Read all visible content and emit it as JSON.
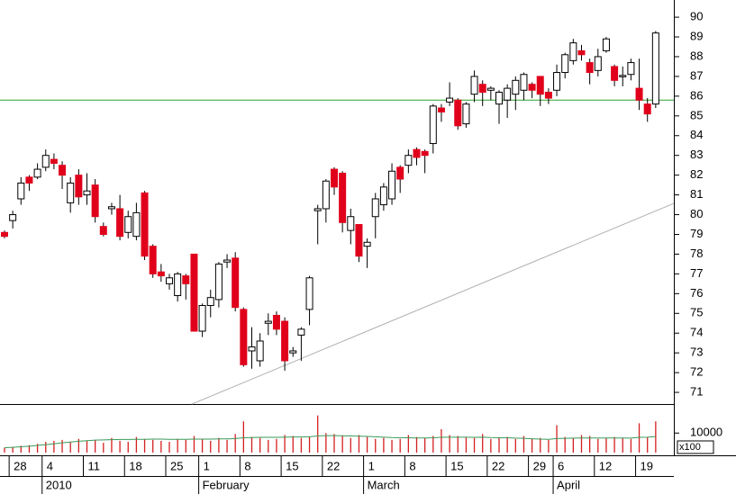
{
  "chart_data": {
    "type": "candlestick",
    "categories": [
      null,
      "28",
      null,
      null,
      null,
      "4",
      null,
      null,
      null,
      null,
      "11",
      null,
      null,
      null,
      null,
      "18",
      null,
      null,
      null,
      null,
      "25",
      null,
      null,
      null,
      "1",
      null,
      null,
      null,
      null,
      "8",
      null,
      null,
      null,
      null,
      "15",
      null,
      null,
      null,
      null,
      "22",
      null,
      null,
      null,
      null,
      "1",
      null,
      null,
      null,
      null,
      "8",
      null,
      null,
      null,
      null,
      "15",
      null,
      null,
      null,
      null,
      "22",
      null,
      null,
      null,
      null,
      "29",
      null,
      null,
      "6",
      null,
      null,
      null,
      null,
      "12",
      null,
      null,
      null,
      null,
      "19",
      null,
      null
    ],
    "months": [
      null,
      null,
      null,
      null,
      null,
      "2010",
      null,
      null,
      null,
      null,
      null,
      null,
      null,
      null,
      null,
      null,
      null,
      null,
      null,
      null,
      null,
      null,
      null,
      null,
      "February",
      null,
      null,
      null,
      null,
      null,
      null,
      null,
      null,
      null,
      null,
      null,
      null,
      null,
      null,
      null,
      null,
      null,
      null,
      null,
      "March",
      null,
      null,
      null,
      null,
      null,
      null,
      null,
      null,
      null,
      null,
      null,
      null,
      null,
      null,
      null,
      null,
      null,
      null,
      null,
      null,
      null,
      null,
      "April",
      null,
      null,
      null,
      null,
      null,
      null,
      null,
      null,
      null,
      null,
      null,
      null
    ],
    "open": [
      79.1,
      79.7,
      80.8,
      81.9,
      81.9,
      82.4,
      82.8,
      82.5,
      80.6,
      82,
      81,
      81.5,
      79.4,
      80.3,
      80.3,
      79.1,
      78.9,
      81.1,
      78.4,
      77.1,
      76.5,
      75.9,
      76.9,
      78,
      74.1,
      75.4,
      75.7,
      77.6,
      77.8,
      75.2,
      73.1,
      72.6,
      74.5,
      74.9,
      74.6,
      73,
      73.9,
      75.2,
      80.2,
      80.3,
      82.3,
      82.1,
      79.2,
      79.5,
      78.4,
      79.9,
      80.5,
      80.8,
      82.4,
      82.5,
      83.3,
      83.2,
      83.6,
      85.4,
      85.7,
      85.8,
      84.6,
      86.1,
      86.6,
      86.3,
      85.6,
      85.8,
      86.1,
      86.3,
      86.6,
      87,
      86.2,
      86.3,
      87.2,
      87.8,
      88.3,
      87.7,
      87.3,
      88.3,
      87.5,
      87,
      87.1,
      86.4,
      85.6,
      85.6
    ],
    "high": [
      79.2,
      80.2,
      81.9,
      82.0,
      82.6,
      83.3,
      83.1,
      82.7,
      81.9,
      82.3,
      82.1,
      81.8,
      79.6,
      80.6,
      81,
      80.2,
      80.6,
      81.2,
      78.5,
      77.5,
      77,
      77.1,
      77,
      78,
      75.5,
      76.2,
      77.6,
      78,
      78.1,
      75.3,
      74.3,
      74,
      75,
      75.1,
      74.8,
      73.3,
      74.3,
      76.9,
      80.5,
      81.8,
      82.4,
      82.2,
      80.3,
      79.5,
      78.8,
      81.1,
      81.6,
      82.6,
      82.5,
      83.3,
      83.4,
      83.3,
      85.6,
      85.6,
      86.7,
      85.9,
      85.7,
      87.3,
      86.8,
      86.5,
      86.3,
      86.6,
      87,
      87.2,
      86.7,
      87,
      86.4,
      87.6,
      88.2,
      88.9,
      88.6,
      87.9,
      88.4,
      89,
      87.6,
      87.5,
      87.9,
      87.9,
      85.9,
      89.3
    ],
    "low": [
      78.8,
      79.3,
      80.5,
      81.2,
      81.8,
      82.2,
      82.3,
      81.3,
      80.1,
      80.5,
      80.5,
      79.6,
      78.9,
      80.0,
      78.7,
      78.8,
      78.7,
      77.7,
      76.8,
      76.6,
      76.2,
      75.6,
      75.7,
      74.1,
      73.8,
      74.8,
      75.3,
      77.3,
      75.1,
      72.3,
      72.2,
      72.3,
      73.9,
      73.9,
      72.1,
      72.8,
      72.6,
      74.4,
      78.5,
      79.6,
      81,
      79.1,
      78.5,
      77.6,
      77.3,
      78.8,
      80.2,
      80.5,
      81.1,
      82.1,
      82.5,
      82.1,
      83.1,
      84.7,
      85.5,
      84.3,
      84.4,
      85.7,
      85.5,
      85.8,
      84.6,
      84.9,
      85.3,
      85.8,
      85.9,
      85.5,
      85.6,
      86,
      86.9,
      87.6,
      87.8,
      86.6,
      87,
      88.2,
      86.5,
      86.5,
      86.8,
      85.3,
      84.7,
      85.4
    ],
    "close": [
      78.9,
      80,
      81.6,
      81.6,
      82.3,
      83,
      82.6,
      82,
      81.6,
      80.9,
      81.2,
      79.9,
      79.0,
      80.4,
      78.9,
      79.9,
      80.1,
      77.9,
      77,
      76.9,
      76.8,
      77,
      76.5,
      74.1,
      75.4,
      75.8,
      77.5,
      77.7,
      75.3,
      72.4,
      73.3,
      73.6,
      74.6,
      74.2,
      72.6,
      73.1,
      74.2,
      76.8,
      80.3,
      81.7,
      81.4,
      79.6,
      79.9,
      77.9,
      78.6,
      80.8,
      81.4,
      82.2,
      81.8,
      83,
      82.9,
      83.0,
      85.5,
      85.2,
      85.9,
      84.5,
      85.6,
      87,
      86.2,
      86.4,
      86.2,
      86.4,
      86.8,
      87.1,
      86.3,
      86.1,
      85.9,
      87.2,
      88.1,
      88.7,
      88.1,
      87.2,
      88,
      88.9,
      86.8,
      87.05,
      87.7,
      85.8,
      85.1,
      89.2
    ],
    "up_color": "#ffffff",
    "down_color": "#e0001b",
    "ylim": [
      70.41,
      90.87
    ],
    "yticks": [
      71,
      72,
      73,
      74,
      75,
      76,
      77,
      78,
      79,
      80,
      81,
      82,
      83,
      84,
      85,
      86,
      87,
      88,
      89,
      90
    ],
    "hline": 85.8,
    "hline_color": "#2ca02c",
    "trendline": {
      "x": [
        22.7,
        81.2
      ],
      "y": [
        70.4,
        80.57
      ],
      "color": "#b0b0b0"
    },
    "volume": [
      2500,
      3000,
      3500,
      3800,
      4500,
      5500,
      6000,
      6500,
      5500,
      7000,
      6000,
      6500,
      5000,
      7500,
      6000,
      5500,
      8000,
      7000,
      6500,
      6000,
      5500,
      7000,
      6500,
      8500,
      7000,
      6000,
      7500,
      6500,
      9500,
      16000,
      8000,
      7500,
      6500,
      7000,
      9000,
      8500,
      7500,
      8000,
      19000,
      10000,
      9500,
      8500,
      7500,
      9000,
      8000,
      7000,
      7500,
      6500,
      7000,
      9000,
      8000,
      7500,
      8500,
      12000,
      9000,
      8500,
      8000,
      7500,
      9500,
      7000,
      7500,
      8000,
      7000,
      8500,
      7000,
      7500,
      6500,
      14000,
      8000,
      7500,
      9000,
      8500,
      7000,
      7500,
      8000,
      7500,
      7000,
      15000,
      8000,
      16000
    ],
    "volume_ma": [
      2500,
      2700,
      3000,
      3300,
      3700,
      4100,
      4500,
      5000,
      5400,
      5800,
      6100,
      6400,
      6500,
      6600,
      6700,
      6700,
      6800,
      6800,
      6900,
      6900,
      6800,
      6800,
      6800,
      6900,
      6900,
      6900,
      7000,
      7000,
      7200,
      7600,
      7700,
      7800,
      7800,
      7800,
      7900,
      8000,
      8000,
      8100,
      8500,
      8700,
      8700,
      8600,
      8500,
      8400,
      8300,
      8100,
      7900,
      7700,
      7600,
      7600,
      7500,
      7500,
      7600,
      7800,
      7900,
      7900,
      7900,
      7800,
      7900,
      7700,
      7600,
      7600,
      7400,
      7300,
      7100,
      6900,
      6800,
      7200,
      7300,
      7400,
      7500,
      7500,
      7500,
      7500,
      7500,
      7500,
      7400,
      7800,
      7900,
      8200
    ],
    "volume_color": "#d42020",
    "volume_ma_color": "#3a9a5a",
    "volume_ylim": [
      0,
      23000
    ],
    "volume_yticks": [
      10000
    ],
    "volume_unit": "x100"
  }
}
